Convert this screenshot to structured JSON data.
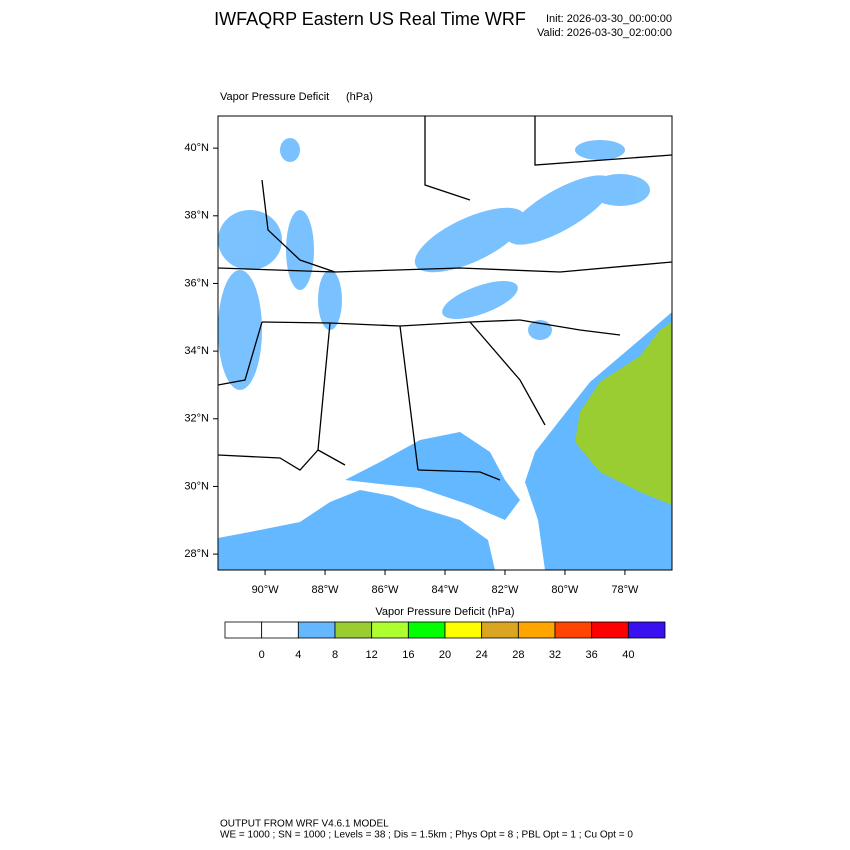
{
  "header": {
    "title": "IWFAQRP Eastern US Real Time WRF",
    "init": "Init: 2026-03-30_00:00:00",
    "valid": "Valid: 2026-03-30_02:00:00"
  },
  "map": {
    "field": "Vapor Pressure Deficit",
    "units": "(hPa)",
    "xlim": [
      -91.57,
      -76.43
    ],
    "ylim": [
      27.53,
      40.95
    ],
    "xticks": [
      {
        "value": -90,
        "label": "90°W"
      },
      {
        "value": -88,
        "label": "88°W"
      },
      {
        "value": -86,
        "label": "86°W"
      },
      {
        "value": -84,
        "label": "84°W"
      },
      {
        "value": -82,
        "label": "82°W"
      },
      {
        "value": -80,
        "label": "80°W"
      },
      {
        "value": -78,
        "label": "78°W"
      }
    ],
    "yticks": [
      {
        "value": 28,
        "label": "28°N"
      },
      {
        "value": 30,
        "label": "30°N"
      },
      {
        "value": 32,
        "label": "32°N"
      },
      {
        "value": 34,
        "label": "34°N"
      },
      {
        "value": 36,
        "label": "36°N"
      },
      {
        "value": 38,
        "label": "38°N"
      },
      {
        "value": 40,
        "label": "40°N"
      }
    ]
  },
  "colorbar": {
    "title": "Vapor Pressure Deficit  (hPa)",
    "levels": [
      0,
      4,
      8,
      12,
      16,
      20,
      24,
      28,
      32,
      36,
      40
    ],
    "colors": [
      "#ffffff",
      "#ffffff",
      "#63b8ff",
      "#9acd32",
      "#adff2f",
      "#00ff00",
      "#ffff00",
      "#daa520",
      "#ffa500",
      "#ff4500",
      "#ff0000",
      "#3a10f0"
    ]
  },
  "footer": {
    "line1": "OUTPUT FROM WRF V4.6.1 MODEL",
    "line2": "WE = 1000 ; SN = 1000 ; Levels = 38 ; Dis = 1.5km ; Phys Opt = 8 ; PBL Opt = 1 ; Cu Opt = 0"
  }
}
